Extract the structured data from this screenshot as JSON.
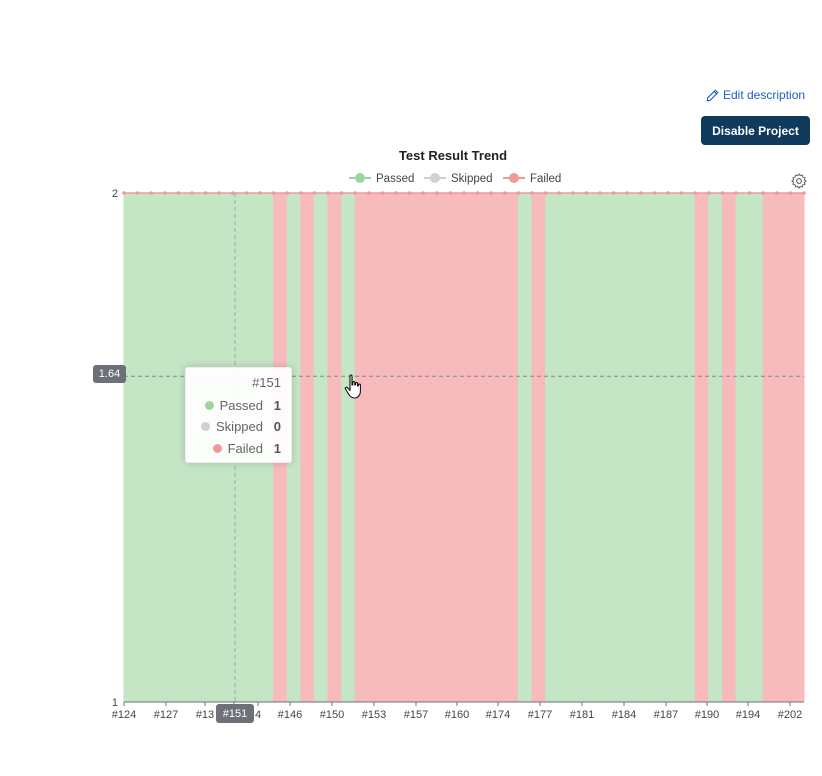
{
  "actions": {
    "edit_description": "Edit description",
    "disable_project": "Disable Project"
  },
  "tooltip": {
    "title": "#151",
    "rows": [
      {
        "name": "Passed",
        "value": "1"
      },
      {
        "name": "Skipped",
        "value": "0"
      },
      {
        "name": "Failed",
        "value": "1"
      }
    ]
  },
  "pointer": {
    "y_label": "1.64",
    "x_label": "#151"
  },
  "colors": {
    "passed": "#c4e6c5",
    "passed_marker": "#9ed49f",
    "skipped": "#d0d0d0",
    "failed": "#f7bbbd",
    "failed_marker": "#ef9a9a",
    "brand_button": "#0f3a5c",
    "link": "#1f5fbf"
  },
  "icons": {
    "edit": "pencil-icon",
    "settings": "gear-icon",
    "cursor": "hand-pointer-icon"
  },
  "chart_data": {
    "type": "area",
    "title": "Test Result Trend",
    "legend": [
      "Passed",
      "Skipped",
      "Failed"
    ],
    "legend_position": "top-center",
    "ylim": [
      1,
      2
    ],
    "y_ticks": [
      "1",
      "2"
    ],
    "x_tick_labels": [
      "#124",
      "#127",
      "#13",
      "#151",
      "4",
      "#146",
      "#150",
      "#153",
      "#157",
      "#160",
      "#174",
      "#177",
      "#181",
      "#184",
      "#187",
      "#190",
      "#194",
      "#202"
    ],
    "status_segments": [
      {
        "from": 0,
        "to": 11,
        "status": "Passed"
      },
      {
        "from": 11,
        "to": 12,
        "status": "Failed"
      },
      {
        "from": 12,
        "to": 13,
        "status": "Passed"
      },
      {
        "from": 13,
        "to": 14,
        "status": "Failed"
      },
      {
        "from": 14,
        "to": 15,
        "status": "Passed"
      },
      {
        "from": 15,
        "to": 16,
        "status": "Failed"
      },
      {
        "from": 16,
        "to": 17,
        "status": "Passed"
      },
      {
        "from": 17,
        "to": 29,
        "status": "Failed"
      },
      {
        "from": 29,
        "to": 30,
        "status": "Passed"
      },
      {
        "from": 30,
        "to": 31,
        "status": "Failed"
      },
      {
        "from": 31,
        "to": 42,
        "status": "Passed"
      },
      {
        "from": 42,
        "to": 43,
        "status": "Failed"
      },
      {
        "from": 43,
        "to": 44,
        "status": "Passed"
      },
      {
        "from": 44,
        "to": 45,
        "status": "Failed"
      },
      {
        "from": 45,
        "to": 47,
        "status": "Passed"
      },
      {
        "from": 47,
        "to": 48,
        "status": "Failed"
      },
      {
        "from": 48,
        "to": 50,
        "status": "Failed"
      }
    ],
    "point_count": 50,
    "hover": {
      "build": "#151",
      "passed": 1,
      "skipped": 0,
      "failed": 1,
      "y": 1.64
    }
  }
}
